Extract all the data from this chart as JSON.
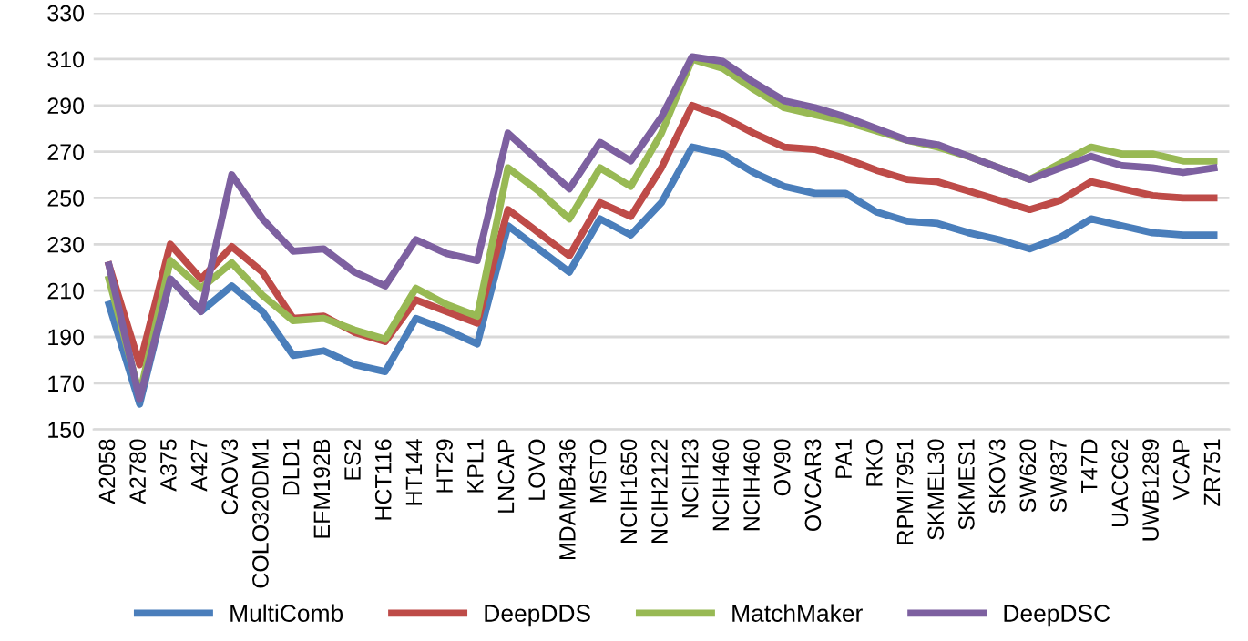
{
  "chart_data": {
    "type": "line",
    "categories": [
      "A2058",
      "A2780",
      "A375",
      "A427",
      "CAOV3",
      "COLO320DM1",
      "DLD1",
      "EFM192B",
      "ES2",
      "HCT116",
      "HT144",
      "HT29",
      "KPL1",
      "LNCAP",
      "LOVO",
      "MDAMB436",
      "MSTO",
      "NCIH1650",
      "NCIH2122",
      "NCIH23",
      "NCIH460",
      "NCIH460",
      "OV90",
      "OVCAR3",
      "PA1",
      "RKO",
      "RPMI7951",
      "SKMEL30",
      "SKMES1",
      "SKOV3",
      "SW620",
      "SW837",
      "T47D",
      "UACC62",
      "UWB1289",
      "VCAP",
      "ZR751"
    ],
    "series": [
      {
        "name": "MultiComb",
        "color": "#4a7ebb",
        "values": [
          204,
          161,
          215,
          201,
          212,
          201,
          182,
          184,
          178,
          175,
          198,
          193,
          187,
          238,
          228,
          218,
          241,
          234,
          248,
          272,
          269,
          261,
          255,
          252,
          252,
          244,
          240,
          239,
          235,
          232,
          228,
          233,
          241,
          238,
          235,
          234,
          234
        ]
      },
      {
        "name": "DeepDDS",
        "color": "#be4b48",
        "values": [
          221,
          178,
          230,
          215,
          229,
          218,
          198,
          199,
          192,
          188,
          206,
          201,
          196,
          245,
          235,
          225,
          248,
          242,
          263,
          290,
          285,
          278,
          272,
          271,
          267,
          262,
          258,
          257,
          253,
          249,
          245,
          249,
          257,
          254,
          251,
          250,
          250
        ]
      },
      {
        "name": "MatchMaker",
        "color": "#98b954",
        "values": [
          215,
          165,
          223,
          211,
          222,
          208,
          197,
          198,
          193,
          189,
          211,
          204,
          199,
          263,
          253,
          241,
          263,
          255,
          278,
          310,
          306,
          297,
          289,
          286,
          283,
          279,
          275,
          272,
          268,
          263,
          258,
          265,
          272,
          269,
          269,
          266,
          266
        ]
      },
      {
        "name": "DeepDSC",
        "color": "#7d60a0",
        "values": [
          221,
          163,
          215,
          201,
          260,
          241,
          227,
          228,
          218,
          212,
          232,
          226,
          223,
          278,
          266,
          254,
          274,
          266,
          285,
          311,
          309,
          300,
          292,
          289,
          285,
          280,
          275,
          273,
          268,
          263,
          258,
          263,
          268,
          264,
          263,
          261,
          263
        ]
      }
    ],
    "ylim": [
      150,
      330
    ],
    "yticks": [
      150,
      170,
      190,
      210,
      230,
      250,
      270,
      290,
      310,
      330
    ],
    "grid": "y",
    "legend": "bottom",
    "marker": "none",
    "line_style": "solid"
  }
}
